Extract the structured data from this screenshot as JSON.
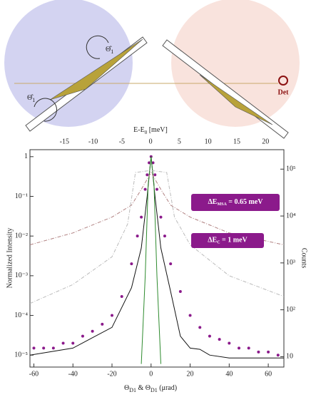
{
  "diagram": {
    "rotation_labels": [
      {
        "main": "Θ̂",
        "sub": "1"
      },
      {
        "main": "Θ̂",
        "sub": "1"
      }
    ],
    "detector_label": "Det",
    "energy_axis": {
      "label": {
        "main": "E-E",
        "sub": "0",
        "rest": " [meV]"
      },
      "xlim": [
        -21,
        23.2
      ],
      "xticks": [
        -15,
        -10,
        -5,
        0,
        5,
        10,
        15,
        20
      ]
    }
  },
  "chart_data": {
    "type": "scatter",
    "xlabel": {
      "a": "Θ",
      "a_sub": "D1",
      "mid": " & Θ",
      "b_sub": "D1",
      "rest": " (μrad)"
    },
    "ylabel": "Normalized Intensity",
    "y2label": "Counts",
    "xlim": [
      -62,
      68
    ],
    "xticks": [
      -60,
      -40,
      -20,
      0,
      20,
      40,
      60
    ],
    "ylim": [
      5e-06,
      1.5
    ],
    "yscale": "log",
    "yticks": [
      1,
      {
        "value": 0.1,
        "label": "10⁻¹"
      },
      {
        "value": 0.01,
        "label": "10⁻²"
      },
      {
        "value": 0.001,
        "label": "10⁻³"
      },
      {
        "value": 0.0001,
        "label": "10⁻⁴"
      },
      {
        "value": 1e-05,
        "label": "10⁻⁵"
      }
    ],
    "y2lim": [
      6,
      260000
    ],
    "y2ticks": [
      {
        "value": 100000,
        "label": "10⁵"
      },
      {
        "value": 10000,
        "label": "10⁴"
      },
      {
        "value": 1000,
        "label": "10³"
      },
      {
        "value": 100,
        "label": "10²"
      },
      10
    ],
    "series": [
      {
        "style": "points",
        "color": "#8b1a8b",
        "x": [
          -60,
          -55,
          -50,
          -45,
          -40,
          -35,
          -30,
          -25,
          -20,
          -15,
          -10,
          -7,
          -5,
          -3,
          -2,
          -1,
          0,
          1,
          2,
          3,
          5,
          7,
          10,
          15,
          20,
          25,
          30,
          35,
          40,
          45,
          50,
          55,
          60,
          65
        ],
        "values": [
          1.5e-05,
          1.5e-05,
          1.5e-05,
          2e-05,
          2e-05,
          3e-05,
          4e-05,
          6e-05,
          0.0001,
          0.0003,
          0.002,
          0.01,
          0.03,
          0.15,
          0.35,
          0.7,
          1,
          0.7,
          0.35,
          0.15,
          0.03,
          0.01,
          0.002,
          0.0004,
          0.0001,
          5e-05,
          3e-05,
          2.5e-05,
          2e-05,
          1.5e-05,
          1.5e-05,
          1.2e-05,
          1.2e-05,
          1e-05
        ]
      },
      {
        "style": "line",
        "color": "#111111",
        "x": [
          -62,
          -40,
          -20,
          -10,
          -5,
          -2,
          0,
          2,
          5,
          10,
          15,
          20,
          25,
          30,
          40,
          68
        ],
        "values": [
          1e-05,
          1.5e-05,
          5e-05,
          0.0005,
          0.005,
          0.1,
          1,
          0.1,
          0.005,
          0.0004,
          3e-05,
          1.5e-05,
          1.4e-05,
          1e-05,
          8.5e-06,
          8.5e-06
        ]
      },
      {
        "style": "line",
        "color": "#2e8b2e",
        "x": [
          -5,
          -3,
          -1.5,
          0,
          1.5,
          3,
          5
        ],
        "values": [
          6e-06,
          0.001,
          0.2,
          1,
          0.2,
          0.001,
          6e-06
        ]
      },
      {
        "style": "dashed",
        "color": "#b08080",
        "x": [
          -62,
          -40,
          -20,
          -10,
          -5,
          0,
          5,
          10,
          20,
          40,
          68
        ],
        "values": [
          0.006,
          0.012,
          0.03,
          0.06,
          0.15,
          0.4,
          0.15,
          0.06,
          0.03,
          0.012,
          0.006
        ]
      },
      {
        "style": "dashed",
        "color": "#bbbbbb",
        "x": [
          -62,
          -40,
          -20,
          -12,
          -8,
          0,
          8,
          12,
          20,
          40,
          68
        ],
        "values": [
          0.0002,
          0.0006,
          0.003,
          0.02,
          0.4,
          0.45,
          0.4,
          0.03,
          0.006,
          0.001,
          0.0003
        ]
      }
    ],
    "annotations": [
      {
        "main": "ΔE",
        "sub": "MSA",
        "rest": " = 0.65 meV"
      },
      {
        "main": "ΔE",
        "sub": "C",
        "rest": " = 1 meV"
      }
    ]
  }
}
